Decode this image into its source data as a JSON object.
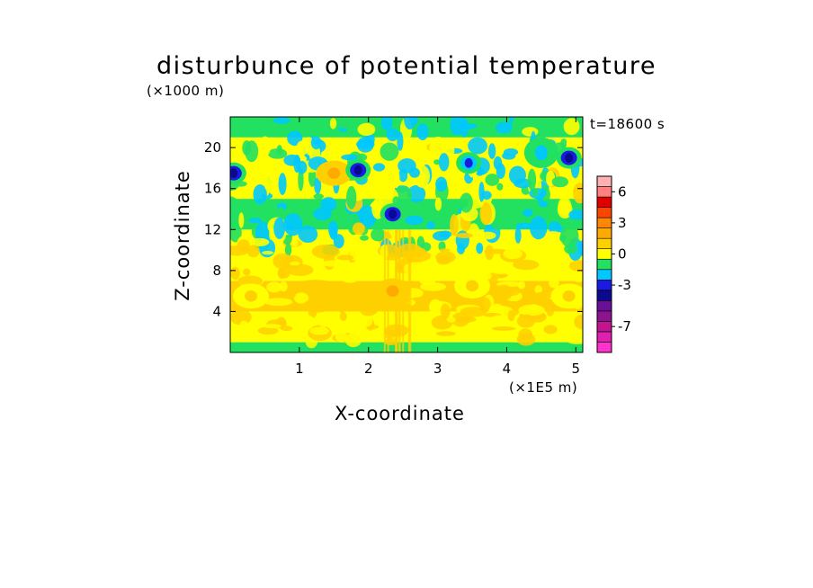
{
  "chart_data": {
    "type": "heatmap",
    "title": "disturbunce of potential temperature",
    "xlabel": "X-coordinate",
    "ylabel": "Z-coordinate",
    "x_unit": "(×1E5 m)",
    "y_unit": "(×1000 m)",
    "time_label": "t=18600 s",
    "xlim": [
      0,
      5.1
    ],
    "ylim": [
      0,
      23
    ],
    "x_ticks": [
      1,
      2,
      3,
      4,
      5
    ],
    "y_ticks": [
      4,
      8,
      12,
      16,
      20
    ],
    "colorbar": {
      "levels": [
        -9,
        -8,
        -7,
        -6,
        -5,
        -4,
        -3,
        -2,
        -1,
        0,
        1,
        2,
        3,
        4,
        5,
        6,
        7
      ],
      "colors": [
        "#ff33cc",
        "#e020b0",
        "#c01490",
        "#8c1490",
        "#6a1098",
        "#0a0a90",
        "#1a1ae0",
        "#00c8ff",
        "#22e060",
        "#ffff00",
        "#ffd000",
        "#ffaa00",
        "#ff8800",
        "#ff4400",
        "#e00000",
        "#ff8080",
        "#ffb0b0"
      ],
      "tick_labels": [
        "6",
        "3",
        "0",
        "-3",
        "-7"
      ],
      "tick_values": [
        6,
        3,
        0,
        -3,
        -7
      ]
    },
    "bands": [
      {
        "z_from": 0,
        "z_to": 1,
        "value": -1
      },
      {
        "z_from": 1,
        "z_to": 4,
        "value": 0.5
      },
      {
        "z_from": 4,
        "z_to": 7,
        "value": 1
      },
      {
        "z_from": 7,
        "z_to": 10.5,
        "value": 0.5
      },
      {
        "z_from": 10.5,
        "z_to": 12,
        "value": 0.5
      },
      {
        "z_from": 12,
        "z_to": 15,
        "value": -0.5
      },
      {
        "z_from": 15,
        "z_to": 21,
        "value": 0
      },
      {
        "z_from": 21,
        "z_to": 23,
        "value": -0.5
      }
    ],
    "features": [
      {
        "x": 0.05,
        "z": 17.5,
        "value": -4
      },
      {
        "x": 1.5,
        "z": 17.5,
        "value": 2
      },
      {
        "x": 1.85,
        "z": 17.8,
        "value": -4
      },
      {
        "x": 2.35,
        "z": 13.5,
        "value": -4
      },
      {
        "x": 2.35,
        "z": 6,
        "value": 2
      },
      {
        "x": 3.45,
        "z": 18.5,
        "value": -3
      },
      {
        "x": 4.5,
        "z": 19.5,
        "value": -2
      },
      {
        "x": 4.9,
        "z": 19,
        "value": -4
      },
      {
        "x": 0.3,
        "z": 5.5,
        "value": 1
      },
      {
        "x": 3.5,
        "z": 6.5,
        "value": 1
      },
      {
        "x": 4.9,
        "z": 5.5,
        "value": 1
      }
    ]
  }
}
